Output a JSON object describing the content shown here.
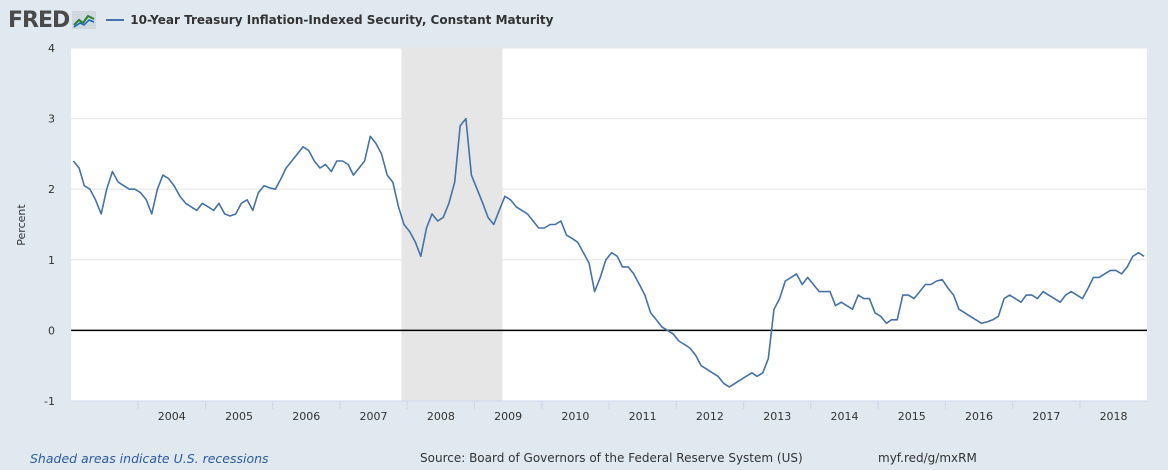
{
  "header": {
    "logo_text": "FRED",
    "logo_icon": "chart-line-icon",
    "series_label": "10-Year Treasury Inflation-Indexed Security, Constant Maturity"
  },
  "footer": {
    "recession_note": "Shaded areas indicate U.S. recessions",
    "source": "Source: Board of Governors of the Federal Reserve System (US)",
    "short_link": "myf.red/g/mxRM"
  },
  "colors": {
    "series": "#4572a7",
    "recession": "#e6e6e6",
    "background": "#e1e9f0"
  },
  "chart_data": {
    "type": "line",
    "xlabel": "",
    "ylabel": "Percent",
    "ylim": [
      -1,
      4
    ],
    "xlim": [
      "2003-01-02",
      "2018-12-31"
    ],
    "yticks": [
      -1,
      0,
      1,
      2,
      3,
      4
    ],
    "xticks": [
      "2004",
      "2005",
      "2006",
      "2007",
      "2008",
      "2009",
      "2010",
      "2011",
      "2012",
      "2013",
      "2014",
      "2015",
      "2016",
      "2017",
      "2018"
    ],
    "grid": "horizontal",
    "zero_line": true,
    "recessions": [
      {
        "start": "2007-12-01",
        "end": "2009-06-01"
      }
    ],
    "series": [
      {
        "name": "10-Year Treasury Inflation-Indexed Security, Constant Maturity",
        "x": [
          "2003-01",
          "2003-02",
          "2003-03",
          "2003-04",
          "2003-05",
          "2003-06",
          "2003-07",
          "2003-08",
          "2003-09",
          "2003-10",
          "2003-11",
          "2003-12",
          "2004-01",
          "2004-02",
          "2004-03",
          "2004-04",
          "2004-05",
          "2004-06",
          "2004-07",
          "2004-08",
          "2004-09",
          "2004-10",
          "2004-11",
          "2004-12",
          "2005-01",
          "2005-02",
          "2005-03",
          "2005-04",
          "2005-05",
          "2005-06",
          "2005-07",
          "2005-08",
          "2005-09",
          "2005-10",
          "2005-11",
          "2005-12",
          "2006-01",
          "2006-02",
          "2006-03",
          "2006-04",
          "2006-05",
          "2006-06",
          "2006-07",
          "2006-08",
          "2006-09",
          "2006-10",
          "2006-11",
          "2006-12",
          "2007-01",
          "2007-02",
          "2007-03",
          "2007-04",
          "2007-05",
          "2007-06",
          "2007-07",
          "2007-08",
          "2007-09",
          "2007-10",
          "2007-11",
          "2007-12",
          "2008-01",
          "2008-02",
          "2008-03",
          "2008-04",
          "2008-05",
          "2008-06",
          "2008-07",
          "2008-08",
          "2008-09",
          "2008-10",
          "2008-11",
          "2008-12",
          "2009-01",
          "2009-02",
          "2009-03",
          "2009-04",
          "2009-05",
          "2009-06",
          "2009-07",
          "2009-08",
          "2009-09",
          "2009-10",
          "2009-11",
          "2009-12",
          "2010-01",
          "2010-02",
          "2010-03",
          "2010-04",
          "2010-05",
          "2010-06",
          "2010-07",
          "2010-08",
          "2010-09",
          "2010-10",
          "2010-11",
          "2010-12",
          "2011-01",
          "2011-02",
          "2011-03",
          "2011-04",
          "2011-05",
          "2011-06",
          "2011-07",
          "2011-08",
          "2011-09",
          "2011-10",
          "2011-11",
          "2011-12",
          "2012-01",
          "2012-02",
          "2012-03",
          "2012-04",
          "2012-05",
          "2012-06",
          "2012-07",
          "2012-08",
          "2012-09",
          "2012-10",
          "2012-11",
          "2012-12",
          "2013-01",
          "2013-02",
          "2013-03",
          "2013-04",
          "2013-05",
          "2013-06",
          "2013-07",
          "2013-08",
          "2013-09",
          "2013-10",
          "2013-11",
          "2013-12",
          "2014-01",
          "2014-02",
          "2014-03",
          "2014-04",
          "2014-05",
          "2014-06",
          "2014-07",
          "2014-08",
          "2014-09",
          "2014-10",
          "2014-11",
          "2014-12",
          "2015-01",
          "2015-02",
          "2015-03",
          "2015-04",
          "2015-05",
          "2015-06",
          "2015-07",
          "2015-08",
          "2015-09",
          "2015-10",
          "2015-11",
          "2015-12",
          "2016-01",
          "2016-02",
          "2016-03",
          "2016-04",
          "2016-05",
          "2016-06",
          "2016-07",
          "2016-08",
          "2016-09",
          "2016-10",
          "2016-11",
          "2016-12",
          "2017-01",
          "2017-02",
          "2017-03",
          "2017-04",
          "2017-05",
          "2017-06",
          "2017-07",
          "2017-08",
          "2017-09",
          "2017-10",
          "2017-11",
          "2017-12",
          "2018-01",
          "2018-02",
          "2018-03",
          "2018-04",
          "2018-05",
          "2018-06",
          "2018-07",
          "2018-08",
          "2018-09",
          "2018-10",
          "2018-11",
          "2018-12"
        ],
        "values": [
          2.4,
          2.3,
          2.05,
          2.0,
          1.85,
          1.65,
          2.0,
          2.25,
          2.1,
          2.05,
          2.0,
          2.0,
          1.95,
          1.85,
          1.65,
          2.0,
          2.2,
          2.15,
          2.05,
          1.9,
          1.8,
          1.75,
          1.7,
          1.8,
          1.75,
          1.7,
          1.8,
          1.65,
          1.62,
          1.65,
          1.8,
          1.85,
          1.7,
          1.95,
          2.05,
          2.02,
          2.0,
          2.15,
          2.3,
          2.4,
          2.5,
          2.6,
          2.55,
          2.4,
          2.3,
          2.35,
          2.25,
          2.4,
          2.4,
          2.35,
          2.2,
          2.3,
          2.4,
          2.75,
          2.65,
          2.5,
          2.2,
          2.1,
          1.75,
          1.5,
          1.4,
          1.25,
          1.05,
          1.45,
          1.65,
          1.55,
          1.6,
          1.8,
          2.1,
          2.9,
          3.0,
          2.2,
          2.0,
          1.8,
          1.6,
          1.5,
          1.7,
          1.9,
          1.85,
          1.75,
          1.7,
          1.65,
          1.55,
          1.45,
          1.45,
          1.5,
          1.5,
          1.55,
          1.35,
          1.3,
          1.25,
          1.1,
          0.95,
          0.55,
          0.75,
          1.0,
          1.1,
          1.05,
          0.9,
          0.9,
          0.8,
          0.65,
          0.5,
          0.25,
          0.15,
          0.05,
          0.0,
          -0.05,
          -0.15,
          -0.2,
          -0.25,
          -0.35,
          -0.5,
          -0.55,
          -0.6,
          -0.65,
          -0.75,
          -0.8,
          -0.75,
          -0.7,
          -0.65,
          -0.6,
          -0.65,
          -0.6,
          -0.4,
          0.3,
          0.45,
          0.7,
          0.75,
          0.8,
          0.65,
          0.75,
          0.65,
          0.55,
          0.55,
          0.55,
          0.35,
          0.4,
          0.35,
          0.3,
          0.5,
          0.45,
          0.45,
          0.25,
          0.2,
          0.1,
          0.15,
          0.15,
          0.5,
          0.5,
          0.45,
          0.55,
          0.65,
          0.65,
          0.7,
          0.72,
          0.6,
          0.5,
          0.3,
          0.25,
          0.2,
          0.15,
          0.1,
          0.12,
          0.15,
          0.2,
          0.45,
          0.5,
          0.45,
          0.4,
          0.5,
          0.5,
          0.45,
          0.55,
          0.5,
          0.45,
          0.4,
          0.5,
          0.55,
          0.5,
          0.45,
          0.6,
          0.75,
          0.75,
          0.8,
          0.85,
          0.85,
          0.8,
          0.9,
          1.05,
          1.1,
          1.05
        ]
      }
    ]
  }
}
